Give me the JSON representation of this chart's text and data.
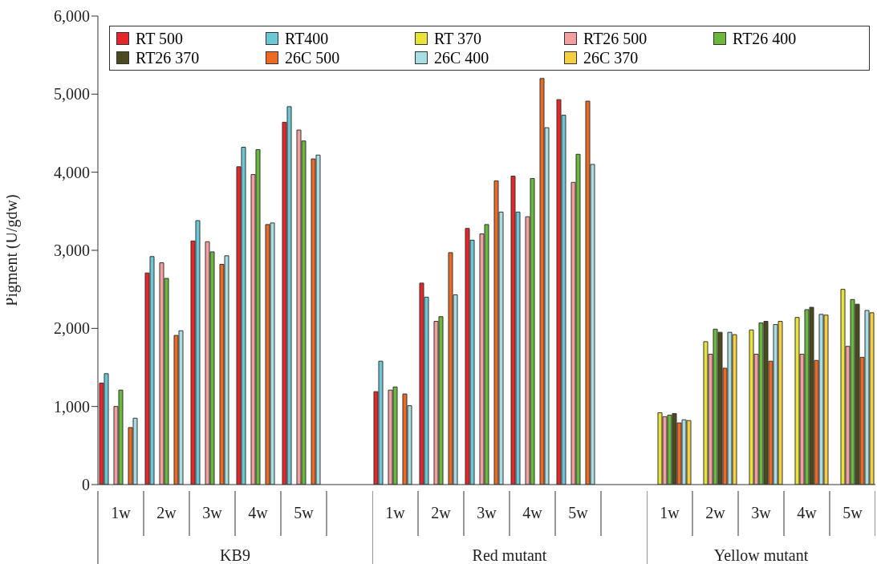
{
  "chart_data": [
    {
      "type": "bar",
      "ylabel": "Pigment (U/gdw)",
      "xlabel": "KB9",
      "categories": [
        "1w",
        "2w",
        "3w",
        "4w",
        "5w",
        null
      ],
      "ylim": [
        0,
        6000
      ],
      "yticks": [
        0,
        {
          "value": 1000,
          "label": "1,000"
        },
        {
          "value": 2000,
          "label": "2,000"
        },
        {
          "value": 3000,
          "label": "3,000"
        },
        {
          "value": 4000,
          "label": "4,000"
        },
        {
          "value": 5000,
          "label": "5,000"
        },
        {
          "value": 6000,
          "label": "6,000"
        }
      ],
      "legend": "top",
      "series": [
        {
          "name": "RT 500",
          "color": "#e8262a",
          "values": [
            1300,
            2710,
            3120,
            4070,
            4640,
            null
          ]
        },
        {
          "name": "RT400",
          "color": "#6cc8d4",
          "values": [
            1420,
            2920,
            3380,
            4320,
            4840,
            null
          ]
        },
        {
          "name": "RT 370",
          "color": "#e8e23a",
          "values": [
            null,
            null,
            null,
            null,
            null,
            null
          ]
        },
        {
          "name": "RT26 500",
          "color": "#f4a0a0",
          "values": [
            1000,
            2840,
            3110,
            3970,
            4540,
            null
          ]
        },
        {
          "name": "RT26 400",
          "color": "#6ab83e",
          "values": [
            1210,
            2640,
            2980,
            4290,
            4400,
            null
          ]
        },
        {
          "name": "RT26 370",
          "color": "#4a4a1e",
          "values": [
            null,
            null,
            null,
            null,
            null,
            null
          ]
        },
        {
          "name": "26C 500",
          "color": "#ec6a24",
          "values": [
            730,
            1910,
            2820,
            3330,
            4170,
            null
          ]
        },
        {
          "name": "26C 400",
          "color": "#a8dde4",
          "values": [
            850,
            1970,
            2930,
            3350,
            4220,
            null
          ]
        },
        {
          "name": "26C 370",
          "color": "#f4d040",
          "values": [
            null,
            null,
            null,
            null,
            null,
            null
          ]
        }
      ]
    },
    {
      "type": "bar",
      "xlabel": "Red mutant",
      "categories": [
        "1w",
        "2w",
        "3w",
        "4w",
        "5w",
        null
      ],
      "ylim": [
        0,
        6000
      ],
      "tick_labels": "x",
      "series": [
        {
          "color": "#e8262a",
          "values": [
            1190,
            2580,
            3280,
            3950,
            4930,
            null
          ]
        },
        {
          "color": "#6cc8d4",
          "values": [
            1580,
            2400,
            3130,
            3490,
            4730,
            null
          ]
        },
        {
          "color": "#e8e23a",
          "values": [
            null,
            null,
            null,
            null,
            null,
            null
          ]
        },
        {
          "color": "#f4a0a0",
          "values": [
            1210,
            2090,
            3210,
            3430,
            3870,
            null
          ]
        },
        {
          "color": "#6ab83e",
          "values": [
            1250,
            2150,
            3330,
            3920,
            4230,
            null
          ]
        },
        {
          "color": "#4a4a1e",
          "values": [
            null,
            null,
            null,
            null,
            null,
            null
          ]
        },
        {
          "color": "#ec6a24",
          "values": [
            1160,
            2970,
            3890,
            5200,
            4910,
            null
          ]
        },
        {
          "color": "#a8dde4",
          "values": [
            1010,
            2430,
            3490,
            4570,
            4100,
            null
          ]
        },
        {
          "color": "#f4d040",
          "values": [
            null,
            null,
            null,
            null,
            null,
            null
          ]
        }
      ]
    },
    {
      "type": "bar",
      "xlabel": "Yellow mutant",
      "categories": [
        "1w",
        "2w",
        "3w",
        "4w",
        "5w"
      ],
      "ylim": [
        0,
        6000
      ],
      "tick_labels": "x",
      "series": [
        {
          "color": "#e8262a",
          "values": [
            null,
            null,
            null,
            null,
            null
          ]
        },
        {
          "color": "#6cc8d4",
          "values": [
            null,
            null,
            null,
            null,
            null
          ]
        },
        {
          "color": "#e8e23a",
          "values": [
            920,
            1830,
            1980,
            2140,
            2500
          ]
        },
        {
          "color": "#f4a0a0",
          "values": [
            870,
            1670,
            1670,
            1670,
            1770
          ]
        },
        {
          "color": "#6ab83e",
          "values": [
            890,
            1990,
            2070,
            2240,
            2370
          ]
        },
        {
          "color": "#4a4a1e",
          "values": [
            910,
            1950,
            2090,
            2270,
            2310
          ]
        },
        {
          "color": "#ec6a24",
          "values": [
            790,
            1490,
            1580,
            1590,
            1630
          ]
        },
        {
          "color": "#a8dde4",
          "values": [
            830,
            1950,
            2050,
            2180,
            2230
          ]
        },
        {
          "color": "#f4d040",
          "values": [
            820,
            1920,
            2090,
            2170,
            2200
          ]
        }
      ]
    }
  ]
}
